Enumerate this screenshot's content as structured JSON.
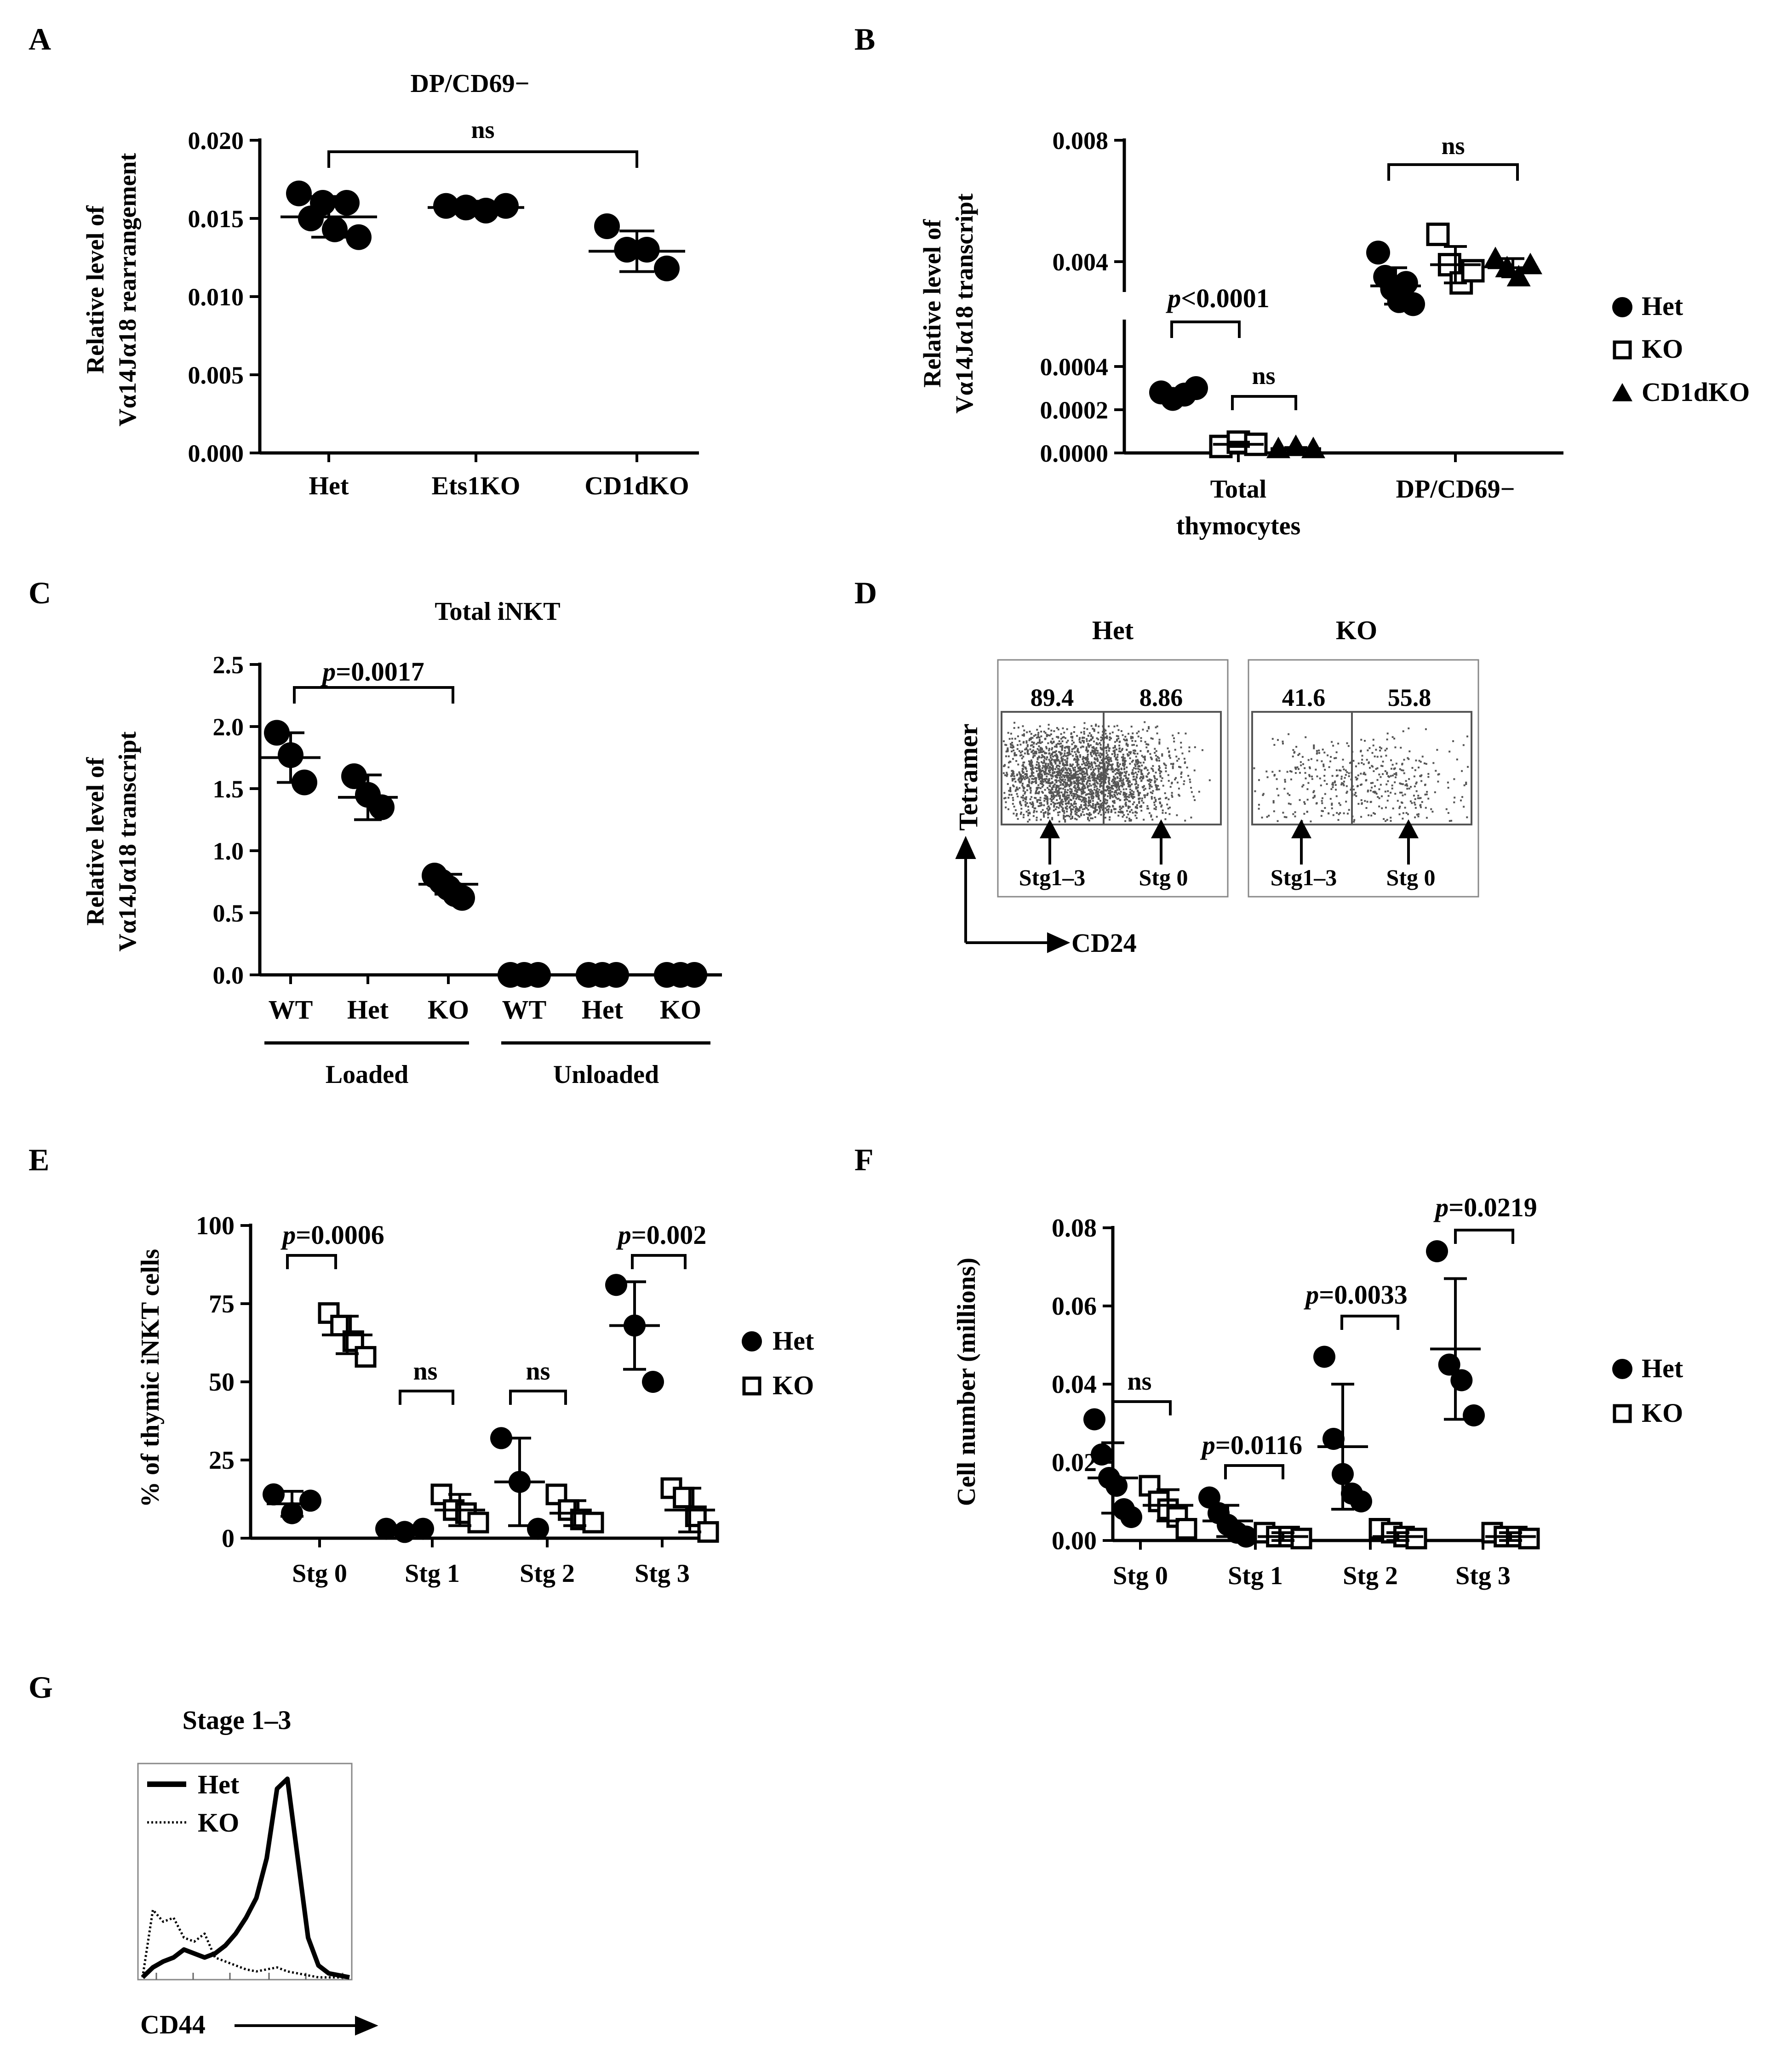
{
  "colors": {
    "ink": "#000000",
    "background": "#ffffff",
    "dots": "#555555"
  },
  "chart_data": [
    {
      "id": "A",
      "type": "scatter",
      "panel_label": "A",
      "title": "DP/CD69−",
      "ylabel_line1": "Relative level of",
      "ylabel_line2": "Vα14Jα18 rearrangement",
      "ylim": [
        0,
        0.02
      ],
      "yticks": [
        "0.000",
        "0.005",
        "0.010",
        "0.015",
        "0.020"
      ],
      "categories": [
        "Het",
        "Ets1KO",
        "CD1dKO"
      ],
      "series": [
        {
          "name": "Het",
          "marker": "circle",
          "points": [
            0.0166,
            0.015,
            0.016,
            0.0143,
            0.016,
            0.0138
          ],
          "mean": 0.0151,
          "sd": 0.0013
        },
        {
          "name": "Ets1KO",
          "marker": "circle",
          "points": [
            0.0158,
            0.0157,
            0.0155,
            0.0158
          ],
          "mean": 0.0157,
          "sd": 0.0004
        },
        {
          "name": "CD1dKO",
          "marker": "circle",
          "points": [
            0.0145,
            0.013,
            0.013,
            0.0118
          ],
          "mean": 0.0129,
          "sd": 0.0013
        }
      ],
      "annotations": [
        {
          "from": 0,
          "to": 2,
          "text": "ns"
        }
      ]
    },
    {
      "id": "B",
      "type": "scatter",
      "panel_label": "B",
      "ylabel_line1": "Relative level of",
      "ylabel_line2": "Vα14Jα18 transcript",
      "ylim_lower": [
        0,
        0.0005
      ],
      "ylim_upper": [
        0.003,
        0.008
      ],
      "yticks_lower": [
        "0.0000",
        "0.0002",
        "0.0004"
      ],
      "yticks_upper": [
        "0.004",
        "0.008"
      ],
      "groups": [
        "Total",
        "thymocytes",
        "DP/CD69−"
      ],
      "legend": [
        {
          "label": "Het",
          "marker": "circle"
        },
        {
          "label": "KO",
          "marker": "square"
        },
        {
          "label": "CD1dKO",
          "marker": "triangle"
        }
      ],
      "series": [
        {
          "name": "Het (Total)",
          "marker": "circle",
          "points": [
            0.00028,
            0.00025,
            0.00027,
            0.0003
          ],
          "mean": 0.00027,
          "sd": 2e-05
        },
        {
          "name": "KO (Total)",
          "marker": "square",
          "points": [
            3e-05,
            5e-05,
            4e-05
          ],
          "mean": 4e-05,
          "sd": 1e-05
        },
        {
          "name": "CD1dKO (Total)",
          "marker": "triangle",
          "points": [
            2e-05,
            3e-05,
            2e-05
          ],
          "mean": 2e-05,
          "sd": 5e-06
        },
        {
          "name": "Het (DP/CD69−)",
          "marker": "circle",
          "points": [
            0.0043,
            0.0035,
            0.0031,
            0.0027,
            0.0033,
            0.0026
          ],
          "mean": 0.0032,
          "sd": 0.0006
        },
        {
          "name": "KO (DP/CD69−)",
          "marker": "square",
          "points": [
            0.0049,
            0.0039,
            0.0033,
            0.0037
          ],
          "mean": 0.0039,
          "sd": 0.0006
        },
        {
          "name": "CD1dKO (DP/CD69−)",
          "marker": "triangle",
          "points": [
            0.0041,
            0.0038,
            0.0035,
            0.0039
          ],
          "mean": 0.0038,
          "sd": 0.0003
        }
      ],
      "annotations": [
        {
          "text": "p<0.0001",
          "p_prefix": "p",
          "p_rest": "<0.0001"
        },
        {
          "text": "ns"
        },
        {
          "text": "ns"
        }
      ]
    },
    {
      "id": "C",
      "type": "scatter",
      "panel_label": "C",
      "title": "Total iNKT",
      "ylabel_line1": "Relative level of",
      "ylabel_line2": "Vα14Jα18 transcript",
      "ylim": [
        0,
        2.5
      ],
      "yticks": [
        "0.0",
        "0.5",
        "1.0",
        "1.5",
        "2.0",
        "2.5"
      ],
      "categories": [
        "WT",
        "Het",
        "KO",
        "WT",
        "Het",
        "KO"
      ],
      "group_labels": [
        "Loaded",
        "Unloaded"
      ],
      "series": [
        {
          "name": "WT Loaded",
          "points": [
            1.95,
            1.77,
            1.55
          ],
          "mean": 1.75,
          "sd": 0.2
        },
        {
          "name": "Het Loaded",
          "points": [
            1.6,
            1.45,
            1.35
          ],
          "mean": 1.43,
          "sd": 0.18
        },
        {
          "name": "KO Loaded",
          "points": [
            0.8,
            0.75,
            0.7,
            0.65,
            0.62
          ],
          "mean": 0.73,
          "sd": 0.08
        },
        {
          "name": "WT Unloaded",
          "points": [
            0,
            0,
            0
          ],
          "mean": 0,
          "sd": 0
        },
        {
          "name": "Het Unloaded",
          "points": [
            0,
            0,
            0
          ],
          "mean": 0,
          "sd": 0
        },
        {
          "name": "KO Unloaded",
          "points": [
            0,
            0,
            0
          ],
          "mean": 0,
          "sd": 0
        }
      ],
      "annotations": [
        {
          "text": "p=0.0017",
          "p_prefix": "p",
          "p_rest": "=0.0017"
        }
      ]
    },
    {
      "id": "D",
      "type": "scatter",
      "panel_label": "D",
      "subtype": "flow-cytometry",
      "y_axis": "Tetramer",
      "x_axis": "CD24",
      "plots": [
        {
          "title": "Het",
          "left_pct": "89.4",
          "right_pct": "8.86",
          "left_gate": "Stg1–3",
          "right_gate": "Stg 0"
        },
        {
          "title": "KO",
          "left_pct": "41.6",
          "right_pct": "55.8",
          "left_gate": "Stg1–3",
          "right_gate": "Stg 0"
        }
      ]
    },
    {
      "id": "E",
      "type": "scatter",
      "panel_label": "E",
      "ylabel": "% of thymic iNKT cells",
      "ylim": [
        0,
        100
      ],
      "yticks": [
        "0",
        "25",
        "50",
        "75",
        "100"
      ],
      "categories": [
        "Stg 0",
        "Stg 1",
        "Stg 2",
        "Stg 3"
      ],
      "legend": [
        {
          "label": "Het",
          "marker": "circle"
        },
        {
          "label": "KO",
          "marker": "square"
        }
      ],
      "series": [
        {
          "name": "Het",
          "marker": "circle",
          "values_by_category": [
            [
              14,
              8,
              12
            ],
            [
              3,
              2,
              3
            ],
            [
              32,
              18,
              3
            ],
            [
              81,
              68,
              50
            ]
          ],
          "means": [
            11,
            3,
            18,
            68
          ],
          "sds": [
            4,
            1,
            14,
            14
          ]
        },
        {
          "name": "KO",
          "marker": "square",
          "values_by_category": [
            [
              72,
              68,
              63,
              58
            ],
            [
              14,
              9,
              8,
              5
            ],
            [
              14,
              9,
              6,
              5
            ],
            [
              16,
              13,
              7,
              2
            ]
          ],
          "means": [
            65,
            9,
            8,
            9
          ],
          "sds": [
            6,
            5,
            4,
            7
          ]
        }
      ],
      "annotations": [
        {
          "text": "p=0.0006",
          "p_prefix": "p",
          "p_rest": "=0.0006"
        },
        {
          "text": "ns"
        },
        {
          "text": "ns"
        },
        {
          "text": "p=0.002",
          "p_prefix": "p",
          "p_rest": "=0.002"
        }
      ]
    },
    {
      "id": "F",
      "type": "scatter",
      "panel_label": "F",
      "ylabel": "Cell number (millions)",
      "ylim": [
        0,
        0.08
      ],
      "yticks": [
        "0.00",
        "0.02",
        "0.04",
        "0.06",
        "0.08"
      ],
      "categories": [
        "Stg 0",
        "Stg 1",
        "Stg 2",
        "Stg 3"
      ],
      "legend": [
        {
          "label": "Het",
          "marker": "circle"
        },
        {
          "label": "KO",
          "marker": "square"
        }
      ],
      "series": [
        {
          "name": "Het",
          "marker": "circle",
          "values_by_category": [
            [
              0.031,
              0.022,
              0.016,
              0.014,
              0.008,
              0.006
            ],
            [
              0.011,
              0.007,
              0.004,
              0.002,
              0.001
            ],
            [
              0.047,
              0.026,
              0.017,
              0.012,
              0.01
            ],
            [
              0.074,
              0.045,
              0.041,
              0.032
            ]
          ],
          "means": [
            0.016,
            0.005,
            0.024,
            0.049
          ],
          "sds": [
            0.009,
            0.004,
            0.016,
            0.018
          ]
        },
        {
          "name": "KO",
          "marker": "square",
          "values_by_category": [
            [
              0.014,
              0.01,
              0.008,
              0.006,
              0.003
            ],
            [
              0.002,
              0.001,
              0.001,
              0.0005
            ],
            [
              0.003,
              0.002,
              0.001,
              0.0005
            ],
            [
              0.002,
              0.001,
              0.001,
              0.0005
            ]
          ],
          "means": [
            0.009,
            0.001,
            0.001,
            0.001
          ],
          "sds": [
            0.004,
            0.001,
            0.001,
            0.001
          ]
        }
      ],
      "annotations": [
        {
          "text": "ns"
        },
        {
          "text": "p=0.0116",
          "p_prefix": "p",
          "p_rest": "=0.0116"
        },
        {
          "text": "p=0.0033",
          "p_prefix": "p",
          "p_rest": "=0.0033"
        },
        {
          "text": "p=0.0219",
          "p_prefix": "p",
          "p_rest": "=0.0219"
        }
      ]
    },
    {
      "id": "G",
      "type": "line",
      "panel_label": "G",
      "subtype": "histogram",
      "title": "Stage 1–3",
      "xlabel": "CD44",
      "legend": [
        {
          "label": "Het",
          "style": "solid"
        },
        {
          "label": "KO",
          "style": "dotted"
        }
      ],
      "series": [
        {
          "name": "Het",
          "x": [
            0,
            5,
            10,
            15,
            20,
            25,
            30,
            35,
            40,
            45,
            50,
            55,
            60,
            65,
            70,
            75,
            80,
            85,
            90,
            95,
            100
          ],
          "y": [
            0,
            5,
            8,
            10,
            14,
            12,
            10,
            12,
            16,
            22,
            30,
            40,
            60,
            95,
            100,
            60,
            20,
            6,
            2,
            1,
            0
          ]
        },
        {
          "name": "KO",
          "x": [
            0,
            5,
            10,
            15,
            20,
            25,
            30,
            35,
            40,
            45,
            50,
            55,
            60,
            65,
            70,
            75,
            80,
            85,
            90,
            95,
            100
          ],
          "y": [
            0,
            34,
            28,
            30,
            20,
            18,
            22,
            10,
            8,
            6,
            4,
            3,
            4,
            5,
            3,
            2,
            1,
            0,
            0,
            0,
            0
          ]
        }
      ]
    }
  ]
}
